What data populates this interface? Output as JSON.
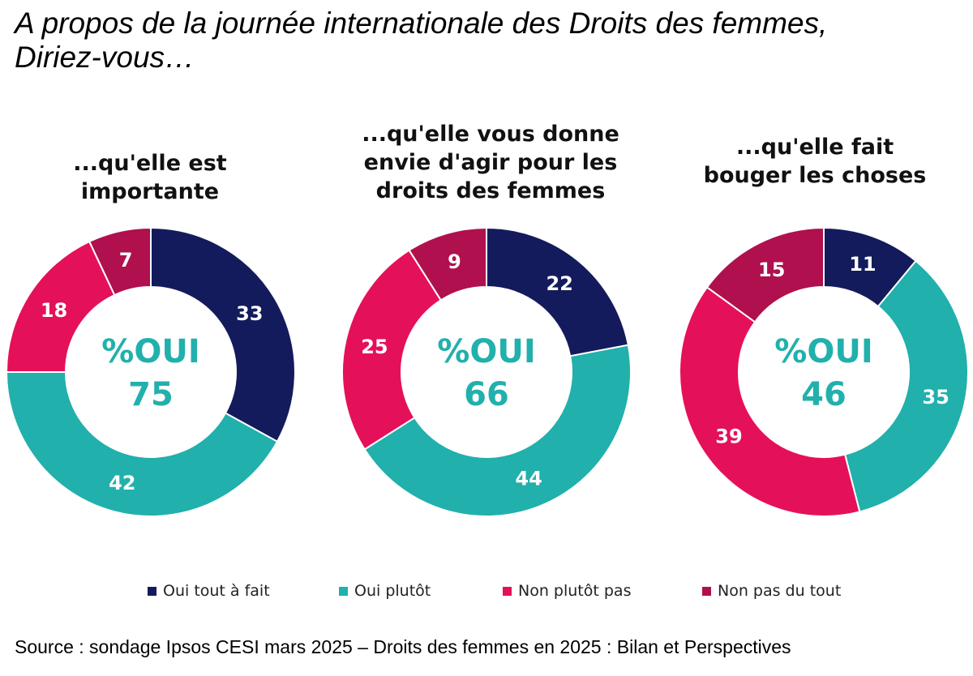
{
  "title": {
    "line1": "A propos de la journée internationale des Droits des femmes,",
    "line2": "Diriez-vous…"
  },
  "colors": {
    "oui_tout_a_fait": "#141b5c",
    "oui_plutot": "#21b0ac",
    "non_plutot_pas": "#e5105a",
    "non_pas_du_tout": "#b0104e",
    "center_text": "#22b0ac",
    "label_text": "#ffffff"
  },
  "chart_data": [
    {
      "type": "pie",
      "title": "...qu'elle est\nimportante",
      "center_label": "%OUI",
      "center_value": "75",
      "categories": [
        "Oui tout à fait",
        "Oui plutôt",
        "Non plutôt pas",
        "Non pas du tout"
      ],
      "values": [
        33,
        42,
        18,
        7
      ]
    },
    {
      "type": "pie",
      "title": "...qu'elle vous donne\nenvie d'agir pour les\ndroits des femmes",
      "center_label": "%OUI",
      "center_value": "66",
      "categories": [
        "Oui tout à fait",
        "Oui plutôt",
        "Non plutôt pas",
        "Non pas du tout"
      ],
      "values": [
        22,
        44,
        25,
        9
      ]
    },
    {
      "type": "pie",
      "title": "...qu'elle fait\nbouger les choses",
      "center_label": "%OUI",
      "center_value": "46",
      "categories": [
        "Oui tout à fait",
        "Oui plutôt",
        "Non plutôt pas",
        "Non pas du tout"
      ],
      "values": [
        11,
        35,
        39,
        15
      ]
    }
  ],
  "legend": [
    {
      "label": "Oui tout à fait",
      "color": "#141b5c"
    },
    {
      "label": "Oui plutôt",
      "color": "#21b0ac"
    },
    {
      "label": "Non plutôt pas",
      "color": "#e5105a"
    },
    {
      "label": "Non pas du tout",
      "color": "#b0104e"
    }
  ],
  "source": "Source : sondage Ipsos CESI mars 2025 – Droits des femmes en 2025 : Bilan et Perspectives"
}
